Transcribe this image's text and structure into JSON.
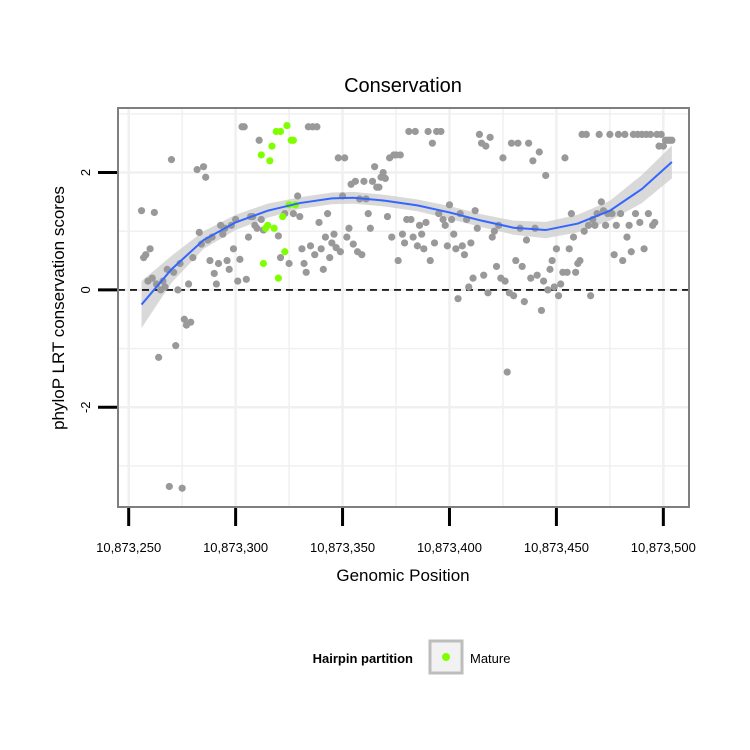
{
  "chart_data": {
    "type": "scatter",
    "title": "Conservation",
    "xlabel": "Genomic Position",
    "ylabel": "phyloP LRT conservation scores",
    "xlim": [
      10873245,
      10873512
    ],
    "ylim": [
      -3.7,
      3.1
    ],
    "x_ticks": [
      10873250,
      10873300,
      10873350,
      10873400,
      10873450,
      10873500
    ],
    "x_tick_labels": [
      "10,873,250",
      "10,873,300",
      "10,873,350",
      "10,873,400",
      "10,873,450",
      "10,873,500"
    ],
    "y_ticks": [
      -2,
      0,
      2
    ],
    "y_tick_labels": [
      "-2",
      "0",
      "2"
    ],
    "hline": {
      "y": 0,
      "style": "dashed"
    },
    "legend": {
      "title": "Hairpin partition",
      "placement": "bottom",
      "entries": [
        {
          "label": "Mature",
          "color": "#7FFF00"
        }
      ]
    },
    "colors": {
      "other": "#999999",
      "mature": "#7FFF00",
      "smooth": "#3366FF",
      "band": "#cccccc"
    },
    "smooth": {
      "x": [
        10873256,
        10873270,
        10873285,
        10873300,
        10873315,
        10873330,
        10873345,
        10873355,
        10873370,
        10873385,
        10873400,
        10873415,
        10873430,
        10873445,
        10873460,
        10873475,
        10873490,
        10873504
      ],
      "y": [
        -0.25,
        0.35,
        0.85,
        1.15,
        1.35,
        1.48,
        1.56,
        1.57,
        1.52,
        1.44,
        1.32,
        1.18,
        1.06,
        1.02,
        1.13,
        1.35,
        1.72,
        2.18
      ],
      "lower": [
        -0.65,
        0.12,
        0.7,
        1.02,
        1.23,
        1.38,
        1.46,
        1.47,
        1.42,
        1.34,
        1.21,
        1.07,
        0.94,
        0.88,
        0.98,
        1.18,
        1.48,
        1.9
      ],
      "upper": [
        0.15,
        0.58,
        1.0,
        1.28,
        1.47,
        1.58,
        1.66,
        1.67,
        1.62,
        1.54,
        1.43,
        1.29,
        1.18,
        1.16,
        1.28,
        1.52,
        1.96,
        2.46
      ]
    },
    "series": [
      {
        "name": "Other",
        "points": [
          [
            10873256,
            1.35
          ],
          [
            10873257,
            0.55
          ],
          [
            10873258,
            0.6
          ],
          [
            10873259,
            0.15
          ],
          [
            10873260,
            0.7
          ],
          [
            10873261,
            0.2
          ],
          [
            10873262,
            1.32
          ],
          [
            10873263,
            0.1
          ],
          [
            10873264,
            -1.15
          ],
          [
            10873265,
            0.0
          ],
          [
            10873266,
            0.15
          ],
          [
            10873267,
            0.05
          ],
          [
            10873268,
            0.35
          ],
          [
            10873269,
            -3.35
          ],
          [
            10873270,
            2.22
          ],
          [
            10873271,
            0.3
          ],
          [
            10873272,
            -0.95
          ],
          [
            10873273,
            0.0
          ],
          [
            10873274,
            0.45
          ],
          [
            10873275,
            -3.38
          ],
          [
            10873276,
            -0.5
          ],
          [
            10873277,
            -0.6
          ],
          [
            10873278,
            0.1
          ],
          [
            10873279,
            -0.55
          ],
          [
            10873280,
            0.55
          ],
          [
            10873282,
            2.05
          ],
          [
            10873283,
            0.98
          ],
          [
            10873284,
            0.78
          ],
          [
            10873285,
            2.1
          ],
          [
            10873286,
            1.92
          ],
          [
            10873287,
            0.85
          ],
          [
            10873288,
            0.5
          ],
          [
            10873289,
            0.9
          ],
          [
            10873290,
            0.28
          ],
          [
            10873291,
            0.1
          ],
          [
            10873292,
            0.45
          ],
          [
            10873293,
            1.1
          ],
          [
            10873294,
            0.95
          ],
          [
            10873295,
            1.05
          ],
          [
            10873296,
            0.5
          ],
          [
            10873297,
            0.35
          ],
          [
            10873298,
            1.1
          ],
          [
            10873299,
            0.7
          ],
          [
            10873300,
            1.2
          ],
          [
            10873301,
            0.15
          ],
          [
            10873302,
            0.52
          ],
          [
            10873303,
            2.78
          ],
          [
            10873304,
            2.78
          ],
          [
            10873305,
            0.18
          ],
          [
            10873306,
            0.9
          ],
          [
            10873307,
            1.25
          ],
          [
            10873308,
            1.25
          ],
          [
            10873309,
            1.1
          ],
          [
            10873310,
            1.05
          ],
          [
            10873311,
            2.55
          ],
          [
            10873312,
            1.2
          ],
          [
            10873313,
            1.02
          ],
          [
            10873320,
            0.92
          ],
          [
            10873321,
            0.55
          ],
          [
            10873323,
            1.3
          ],
          [
            10873325,
            0.45
          ],
          [
            10873327,
            1.3
          ],
          [
            10873329,
            1.6
          ],
          [
            10873330,
            1.25
          ],
          [
            10873331,
            0.7
          ],
          [
            10873332,
            0.45
          ],
          [
            10873333,
            0.3
          ],
          [
            10873334,
            2.78
          ],
          [
            10873335,
            0.75
          ],
          [
            10873336,
            2.78
          ],
          [
            10873337,
            0.6
          ],
          [
            10873338,
            2.78
          ],
          [
            10873339,
            1.15
          ],
          [
            10873340,
            0.7
          ],
          [
            10873341,
            0.35
          ],
          [
            10873342,
            0.9
          ],
          [
            10873343,
            1.3
          ],
          [
            10873344,
            0.55
          ],
          [
            10873345,
            0.8
          ],
          [
            10873346,
            0.95
          ],
          [
            10873347,
            0.72
          ],
          [
            10873348,
            2.25
          ],
          [
            10873349,
            0.65
          ],
          [
            10873350,
            1.6
          ],
          [
            10873351,
            2.25
          ],
          [
            10873352,
            0.9
          ],
          [
            10873353,
            1.05
          ],
          [
            10873354,
            1.8
          ],
          [
            10873355,
            0.78
          ],
          [
            10873356,
            1.85
          ],
          [
            10873357,
            0.65
          ],
          [
            10873358,
            1.55
          ],
          [
            10873359,
            0.6
          ],
          [
            10873360,
            1.85
          ],
          [
            10873361,
            1.55
          ],
          [
            10873362,
            1.3
          ],
          [
            10873363,
            1.05
          ],
          [
            10873364,
            1.85
          ],
          [
            10873365,
            2.1
          ],
          [
            10873366,
            1.75
          ],
          [
            10873367,
            1.75
          ],
          [
            10873368,
            1.92
          ],
          [
            10873369,
            2.0
          ],
          [
            10873370,
            1.9
          ],
          [
            10873371,
            1.25
          ],
          [
            10873372,
            2.25
          ],
          [
            10873373,
            0.9
          ],
          [
            10873374,
            2.3
          ],
          [
            10873375,
            2.3
          ],
          [
            10873376,
            0.5
          ],
          [
            10873377,
            2.3
          ],
          [
            10873378,
            0.95
          ],
          [
            10873379,
            0.8
          ],
          [
            10873380,
            1.2
          ],
          [
            10873381,
            2.7
          ],
          [
            10873382,
            1.2
          ],
          [
            10873383,
            0.9
          ],
          [
            10873384,
            2.7
          ],
          [
            10873385,
            0.75
          ],
          [
            10873386,
            1.1
          ],
          [
            10873387,
            0.95
          ],
          [
            10873388,
            0.7
          ],
          [
            10873389,
            1.15
          ],
          [
            10873390,
            2.7
          ],
          [
            10873391,
            0.5
          ],
          [
            10873392,
            2.5
          ],
          [
            10873393,
            0.8
          ],
          [
            10873394,
            2.7
          ],
          [
            10873395,
            1.3
          ],
          [
            10873396,
            2.7
          ],
          [
            10873397,
            1.2
          ],
          [
            10873398,
            1.1
          ],
          [
            10873399,
            0.75
          ],
          [
            10873400,
            1.45
          ],
          [
            10873401,
            1.2
          ],
          [
            10873402,
            0.95
          ],
          [
            10873403,
            0.7
          ],
          [
            10873404,
            -0.15
          ],
          [
            10873405,
            1.3
          ],
          [
            10873406,
            0.75
          ],
          [
            10873407,
            0.6
          ],
          [
            10873408,
            1.2
          ],
          [
            10873409,
            0.05
          ],
          [
            10873410,
            0.8
          ],
          [
            10873411,
            0.2
          ],
          [
            10873412,
            1.35
          ],
          [
            10873413,
            1.05
          ],
          [
            10873414,
            2.65
          ],
          [
            10873415,
            2.5
          ],
          [
            10873416,
            0.25
          ],
          [
            10873417,
            2.45
          ],
          [
            10873418,
            -0.05
          ],
          [
            10873419,
            2.6
          ],
          [
            10873420,
            0.9
          ],
          [
            10873421,
            1.0
          ],
          [
            10873422,
            0.4
          ],
          [
            10873423,
            1.1
          ],
          [
            10873424,
            0.2
          ],
          [
            10873425,
            2.25
          ],
          [
            10873426,
            0.15
          ],
          [
            10873427,
            -1.4
          ],
          [
            10873428,
            -0.05
          ],
          [
            10873429,
            2.5
          ],
          [
            10873430,
            -0.1
          ],
          [
            10873431,
            0.5
          ],
          [
            10873432,
            2.5
          ],
          [
            10873433,
            1.05
          ],
          [
            10873434,
            0.4
          ],
          [
            10873435,
            -0.2
          ],
          [
            10873436,
            0.85
          ],
          [
            10873437,
            2.5
          ],
          [
            10873438,
            0.2
          ],
          [
            10873439,
            2.2
          ],
          [
            10873440,
            1.05
          ],
          [
            10873441,
            0.25
          ],
          [
            10873442,
            2.35
          ],
          [
            10873443,
            -0.35
          ],
          [
            10873444,
            0.15
          ],
          [
            10873445,
            1.95
          ],
          [
            10873446,
            0.0
          ],
          [
            10873447,
            0.35
          ],
          [
            10873448,
            0.5
          ],
          [
            10873449,
            0.05
          ],
          [
            10873450,
            0.7
          ],
          [
            10873451,
            -0.1
          ],
          [
            10873452,
            0.1
          ],
          [
            10873453,
            0.3
          ],
          [
            10873454,
            2.25
          ],
          [
            10873455,
            0.3
          ],
          [
            10873456,
            0.7
          ],
          [
            10873457,
            1.3
          ],
          [
            10873458,
            0.9
          ],
          [
            10873459,
            0.3
          ],
          [
            10873460,
            0.45
          ],
          [
            10873461,
            0.5
          ],
          [
            10873462,
            2.65
          ],
          [
            10873463,
            1.0
          ],
          [
            10873464,
            2.65
          ],
          [
            10873465,
            1.1
          ],
          [
            10873466,
            -0.1
          ],
          [
            10873467,
            1.2
          ],
          [
            10873468,
            1.1
          ],
          [
            10873469,
            1.3
          ],
          [
            10873470,
            2.65
          ],
          [
            10873471,
            1.5
          ],
          [
            10873472,
            1.35
          ],
          [
            10873473,
            1.1
          ],
          [
            10873474,
            1.3
          ],
          [
            10873475,
            2.65
          ],
          [
            10873476,
            1.3
          ],
          [
            10873477,
            0.6
          ],
          [
            10873478,
            1.1
          ],
          [
            10873479,
            2.65
          ],
          [
            10873480,
            1.3
          ],
          [
            10873481,
            0.5
          ],
          [
            10873482,
            2.65
          ],
          [
            10873483,
            0.9
          ],
          [
            10873484,
            1.1
          ],
          [
            10873485,
            0.65
          ],
          [
            10873486,
            2.65
          ],
          [
            10873487,
            1.3
          ],
          [
            10873488,
            2.65
          ],
          [
            10873489,
            1.15
          ],
          [
            10873490,
            2.65
          ],
          [
            10873491,
            0.7
          ],
          [
            10873492,
            2.65
          ],
          [
            10873493,
            1.3
          ],
          [
            10873494,
            2.65
          ],
          [
            10873495,
            1.1
          ],
          [
            10873496,
            1.15
          ],
          [
            10873497,
            2.65
          ],
          [
            10873498,
            2.45
          ],
          [
            10873499,
            2.65
          ],
          [
            10873500,
            2.45
          ],
          [
            10873501,
            2.55
          ],
          [
            10873502,
            2.55
          ],
          [
            10873503,
            2.55
          ],
          [
            10873504,
            2.55
          ]
        ]
      },
      {
        "name": "Mature",
        "points": [
          [
            10873312,
            2.3
          ],
          [
            10873313,
            0.45
          ],
          [
            10873314,
            1.05
          ],
          [
            10873315,
            1.1
          ],
          [
            10873316,
            2.2
          ],
          [
            10873317,
            2.45
          ],
          [
            10873318,
            1.05
          ],
          [
            10873319,
            2.7
          ],
          [
            10873320,
            0.2
          ],
          [
            10873321,
            2.7
          ],
          [
            10873322,
            1.25
          ],
          [
            10873323,
            0.65
          ],
          [
            10873324,
            2.8
          ],
          [
            10873325,
            1.45
          ],
          [
            10873326,
            2.55
          ],
          [
            10873327,
            2.55
          ],
          [
            10873328,
            1.45
          ]
        ]
      }
    ]
  }
}
